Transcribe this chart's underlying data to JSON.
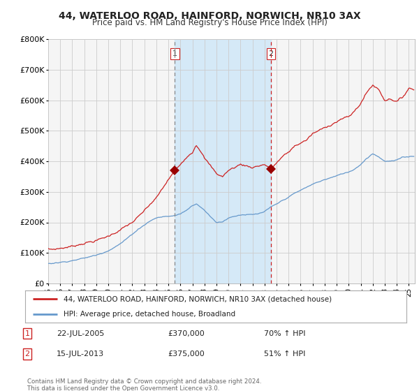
{
  "title": "44, WATERLOO ROAD, HAINFORD, NORWICH, NR10 3AX",
  "subtitle": "Price paid vs. HM Land Registry's House Price Index (HPI)",
  "legend_line1": "44, WATERLOO ROAD, HAINFORD, NORWICH, NR10 3AX (detached house)",
  "legend_line2": "HPI: Average price, detached house, Broadland",
  "sale1_label": "1",
  "sale1_date": "22-JUL-2005",
  "sale1_price": "£370,000",
  "sale1_hpi": "70% ↑ HPI",
  "sale2_label": "2",
  "sale2_date": "15-JUL-2013",
  "sale2_price": "£375,000",
  "sale2_hpi": "51% ↑ HPI",
  "footnote": "Contains HM Land Registry data © Crown copyright and database right 2024.\nThis data is licensed under the Open Government Licence v3.0.",
  "xlim_left": 1995.0,
  "xlim_right": 2025.5,
  "ylim_bottom": 0,
  "ylim_top": 800000,
  "sale1_year": 2005.54,
  "sale2_year": 2013.54,
  "sale1_price_val": 370000,
  "sale2_price_val": 375000,
  "background_color": "#ffffff",
  "plot_bg_color": "#f5f5f5",
  "grid_color": "#cccccc",
  "red_line_color": "#cc2222",
  "blue_line_color": "#6699cc",
  "shade_color": "#d0e8f8",
  "dashed1_color": "#888888",
  "dashed2_color": "#cc2222",
  "marker_color": "#990000",
  "xtick_labels": [
    "95",
    "96",
    "97",
    "98",
    "99",
    "00",
    "01",
    "02",
    "03",
    "04",
    "05",
    "06",
    "07",
    "08",
    "09",
    "10",
    "11",
    "12",
    "13",
    "14",
    "15",
    "16",
    "17",
    "18",
    "19",
    "20",
    "21",
    "22",
    "23",
    "24",
    "25"
  ],
  "xtick_years": [
    1995,
    1996,
    1997,
    1998,
    1999,
    2000,
    2001,
    2002,
    2003,
    2004,
    2005,
    2006,
    2007,
    2008,
    2009,
    2010,
    2011,
    2012,
    2013,
    2014,
    2015,
    2016,
    2017,
    2018,
    2019,
    2020,
    2021,
    2022,
    2023,
    2024,
    2025
  ]
}
